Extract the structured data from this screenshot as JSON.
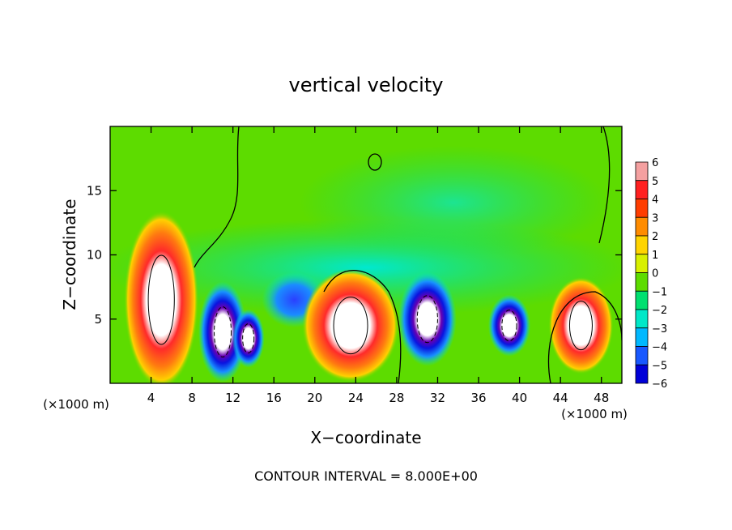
{
  "chart_data": {
    "type": "heatmap",
    "title": "vertical velocity",
    "xlabel": "X−coordinate",
    "ylabel": "Z−coordinate",
    "x_unit_label": "(×1000 m)",
    "z_unit_label": "(×1000 m)",
    "footer": "CONTOUR INTERVAL = 8.000E+00",
    "xlim": [
      0,
      50
    ],
    "ylim": [
      0,
      20
    ],
    "x_ticks": [
      4,
      8,
      12,
      16,
      20,
      24,
      28,
      32,
      36,
      40,
      44,
      48
    ],
    "y_ticks": [
      5,
      10,
      15
    ],
    "colorbar": {
      "ticks": [
        "6",
        "5",
        "4",
        "3",
        "2",
        "1",
        "0",
        "−1",
        "−2",
        "−3",
        "−4",
        "−5",
        "−6"
      ],
      "colors": [
        "#f4a0a0",
        "#ff2020",
        "#ff3d00",
        "#ff8c00",
        "#ffd400",
        "#d8f000",
        "#5ddc00",
        "#00e070",
        "#00e8c8",
        "#00b8ff",
        "#1858ff",
        "#0000d8",
        "#7000a8"
      ]
    },
    "cells": [
      {
        "x": 5.0,
        "z": 6.5,
        "w": 1
      },
      {
        "x": 11.0,
        "z": 4.0,
        "w": -1
      },
      {
        "x": 13.5,
        "z": 3.5,
        "w": -1
      },
      {
        "x": 18.0,
        "z": 6.5,
        "w": -1
      },
      {
        "x": 23.5,
        "z": 4.5,
        "w": 1
      },
      {
        "x": 31.0,
        "z": 5.0,
        "w": -1
      },
      {
        "x": 39.0,
        "z": 4.5,
        "w": -1
      },
      {
        "x": 46.0,
        "z": 4.5,
        "w": 1
      }
    ]
  }
}
